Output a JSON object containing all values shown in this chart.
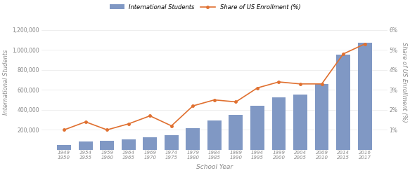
{
  "categories": [
    "1949\n1950",
    "1954\n1955",
    "1959\n1960",
    "1964\n1965",
    "1969\n1970",
    "1974\n1975",
    "1979\n1980",
    "1984\n1985",
    "1989\n1990",
    "1994\n1995",
    "1999\n2000",
    "2004\n2005",
    "2009\n2010",
    "2014\n2015",
    "2016\n2017"
  ],
  "bar_values": [
    48000,
    80000,
    90000,
    105000,
    125000,
    145000,
    215000,
    295000,
    350000,
    440000,
    525000,
    550000,
    660000,
    950000,
    1075000
  ],
  "line_values": [
    1.0,
    1.4,
    1.0,
    1.3,
    1.7,
    1.2,
    2.2,
    2.5,
    2.4,
    3.1,
    3.4,
    3.3,
    3.3,
    4.8,
    5.3
  ],
  "bar_color": "#8098c4",
  "line_color": "#e07030",
  "ylabel_left": "International Students",
  "ylabel_right": "Share of US Enrollment (%)",
  "xlabel": "School Year",
  "legend_bar": "International Students",
  "legend_line": "Share of US Enrollment (%)",
  "ylim_left": [
    0,
    1350000
  ],
  "ylim_right": [
    0,
    6.75
  ],
  "yticks_left": [
    200000,
    400000,
    600000,
    800000,
    1000000,
    1200000
  ],
  "yticks_right": [
    1,
    2,
    3,
    4,
    5,
    6
  ],
  "background_color": "#ffffff",
  "grid_color": "#e8e8e8"
}
